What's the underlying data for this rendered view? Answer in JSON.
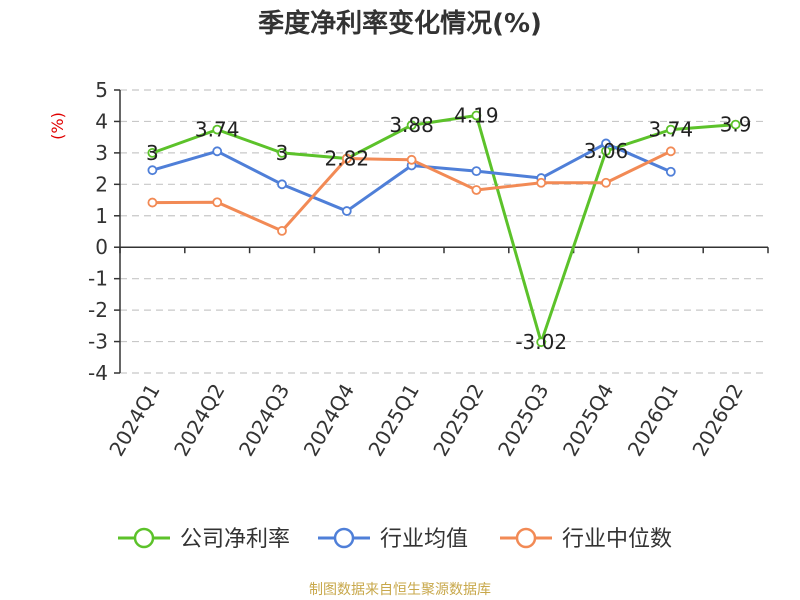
{
  "title": "季度净利率变化情况(%)",
  "source": "制图数据来自恒生聚源数据库",
  "chart_data": {
    "type": "line",
    "title": "季度净利率变化情况(%)",
    "ylabel": "(%)",
    "xlabel": "",
    "ylim": [
      -4,
      5
    ],
    "y_ticks": [
      5,
      4,
      3,
      2,
      1,
      0,
      -1,
      -2,
      -3,
      -4
    ],
    "grid": true,
    "legend_position": "bottom",
    "categories": [
      "2024Q1",
      "2024Q2",
      "2024Q3",
      "2024Q4",
      "2025Q1",
      "2025Q2",
      "2025Q3",
      "2025Q4",
      "2026Q1",
      "2026Q2"
    ],
    "series": [
      {
        "name": "公司净利率",
        "color": "#5cc22a",
        "values": [
          3,
          3.74,
          3,
          2.82,
          3.88,
          4.19,
          -3.02,
          3.06,
          3.74,
          3.9
        ],
        "labels": [
          "3",
          "3.74",
          "3",
          "2.82",
          "3.88",
          "4.19",
          "-3.02",
          "3.06",
          "3.74",
          "3.9"
        ]
      },
      {
        "name": "行业均值",
        "color": "#4f7fd8",
        "values": [
          2.45,
          3.05,
          2.0,
          1.15,
          2.6,
          2.42,
          2.2,
          3.3,
          2.4,
          null
        ]
      },
      {
        "name": "行业中位数",
        "color": "#f28a55",
        "values": [
          1.42,
          1.43,
          0.52,
          2.82,
          2.78,
          1.82,
          2.05,
          2.05,
          3.05,
          null
        ]
      }
    ]
  }
}
